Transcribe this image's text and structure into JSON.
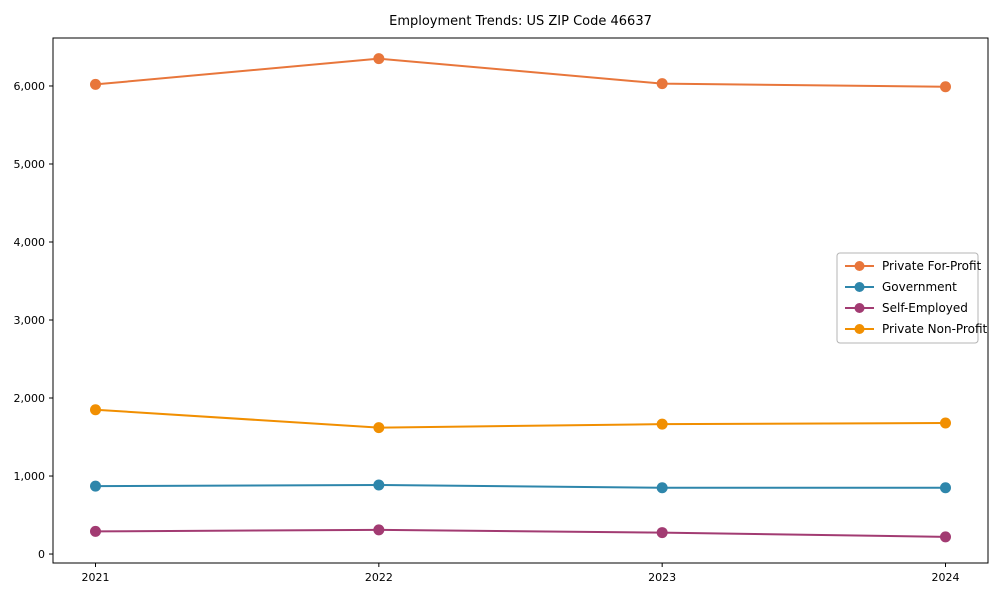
{
  "page": {
    "background": "#ffffff"
  },
  "chart_data": {
    "type": "line",
    "title": "Employment Trends: US ZIP Code 46637",
    "xlabel": "",
    "ylabel": "",
    "x": [
      2021,
      2022,
      2023,
      2024
    ],
    "xtick_labels": [
      "2021",
      "2022",
      "2023",
      "2024"
    ],
    "yticks": [
      0,
      1000,
      2000,
      3000,
      4000,
      5000,
      6000
    ],
    "ytick_labels": [
      "0",
      "1,000",
      "2,000",
      "3,000",
      "4,000",
      "5,000",
      "6,000"
    ],
    "xlim": [
      2020.85,
      2024.15
    ],
    "ylim": [
      -115,
      6615
    ],
    "grid": false,
    "legend": {
      "position": "center right",
      "border_color": "#b5b5b5",
      "background": "#ffffff"
    },
    "axis_color": "#000000",
    "series": [
      {
        "name": "Private For-Profit",
        "color": "#E8763B",
        "values": [
          6020,
          6350,
          6030,
          5990
        ]
      },
      {
        "name": "Government",
        "color": "#2E86AB",
        "values": [
          870,
          885,
          850,
          850
        ]
      },
      {
        "name": "Self-Employed",
        "color": "#A23B72",
        "values": [
          290,
          310,
          275,
          220
        ]
      },
      {
        "name": "Private Non-Profit",
        "color": "#F18F01",
        "values": [
          1850,
          1620,
          1665,
          1680
        ]
      }
    ]
  }
}
